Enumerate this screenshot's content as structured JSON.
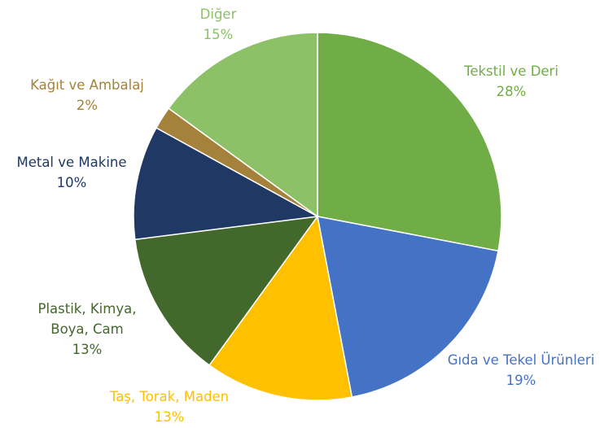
{
  "chart_data": {
    "type": "pie",
    "categories": [
      "Tekstil ve Deri",
      "Gıda ve Tekel Ürünleri",
      "Taş, Torak, Maden",
      "Plastik, Kimya, Boya, Cam",
      "Metal ve Makine",
      "Kağıt ve Ambalaj",
      "Diğer"
    ],
    "values": [
      28,
      19,
      13,
      13,
      10,
      2,
      15
    ],
    "value_labels": [
      "28%",
      "19%",
      "13%",
      "13%",
      "10%",
      "2%",
      "15%"
    ],
    "colors": [
      "#70ad47",
      "#4472c4",
      "#ffc000",
      "#43682b",
      "#203864",
      "#a5823b",
      "#8cc168"
    ]
  }
}
